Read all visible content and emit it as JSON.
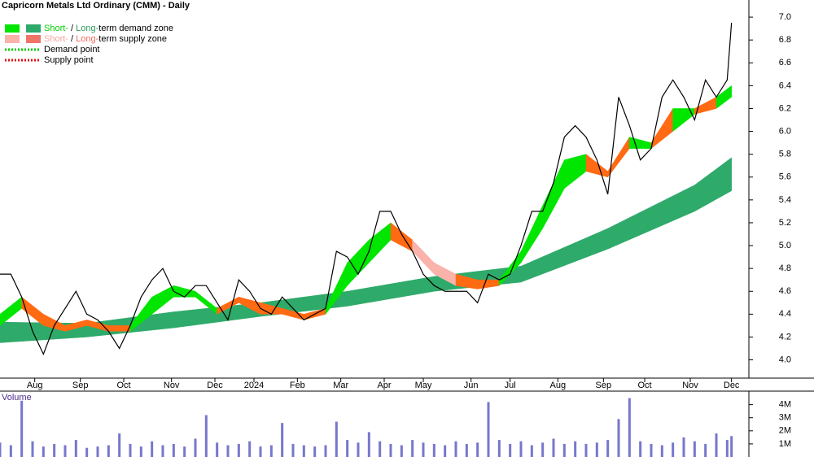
{
  "chart_data": [
    {
      "type": "line",
      "title": "Capricorn Metals Ltd Ordinary (CMM) - Daily",
      "xlim": [
        0,
        345
      ],
      "ylim": [
        3.84,
        7.15
      ],
      "xticks": [
        {
          "value": 16,
          "label": "Aug"
        },
        {
          "value": 37,
          "label": "Sep"
        },
        {
          "value": 57,
          "label": "Oct"
        },
        {
          "value": 79,
          "label": "Nov"
        },
        {
          "value": 99,
          "label": "Dec"
        },
        {
          "value": 117,
          "label": "2024"
        },
        {
          "value": 137,
          "label": "Feb"
        },
        {
          "value": 157,
          "label": "Mar"
        },
        {
          "value": 177,
          "label": "Apr"
        },
        {
          "value": 195,
          "label": "May"
        },
        {
          "value": 217,
          "label": "Jun"
        },
        {
          "value": 235,
          "label": "Jul"
        },
        {
          "value": 257,
          "label": "Aug"
        },
        {
          "value": 278,
          "label": "Sep"
        },
        {
          "value": 297,
          "label": "Oct"
        },
        {
          "value": 318,
          "label": "Nov"
        },
        {
          "value": 337,
          "label": "Dec"
        }
      ],
      "yticks": [
        {
          "value": 4,
          "label": "4.0"
        },
        {
          "value": 4.2,
          "label": "4.2"
        },
        {
          "value": 4.4,
          "label": "4.4"
        },
        {
          "value": 4.6,
          "label": "4.6"
        },
        {
          "value": 4.8,
          "label": "4.8"
        },
        {
          "value": 5,
          "label": "5.0"
        },
        {
          "value": 5.2,
          "label": "5.2"
        },
        {
          "value": 5.4,
          "label": "5.4"
        },
        {
          "value": 5.6,
          "label": "5.6"
        },
        {
          "value": 5.8,
          "label": "5.8"
        },
        {
          "value": 6,
          "label": "6.0"
        },
        {
          "value": 6.2,
          "label": "6.2"
        },
        {
          "value": 6.4,
          "label": "6.4"
        },
        {
          "value": 6.6,
          "label": "6.6"
        },
        {
          "value": 6.8,
          "label": "6.8"
        },
        {
          "value": 7,
          "label": "7.0"
        }
      ],
      "legend": [
        {
          "swatches": [
            "#00e600",
            "#2eaa6a"
          ],
          "parts": [
            "Short-",
            " / ",
            "Long-",
            "term demand zone"
          ],
          "part_colors": [
            "#00d000",
            "#000000",
            "#2e9a5a",
            "#000000"
          ]
        },
        {
          "swatches": [
            "#f9b3ab",
            "#f07468"
          ],
          "parts": [
            "Short-",
            " / ",
            "Long-",
            "term supply zone"
          ],
          "part_colors": [
            "#f5a5a0",
            "#000000",
            "#ee6a5e",
            "#000000"
          ]
        },
        {
          "dots": "#00cc00",
          "parts": [
            "Demand point"
          ],
          "part_colors": [
            "#000000"
          ]
        },
        {
          "dots": "#e01010",
          "parts": [
            "Supply point"
          ],
          "part_colors": [
            "#000000"
          ]
        }
      ],
      "bands": [
        {
          "color": "#2eaa6a",
          "x": [
            0,
            40,
            80,
            120,
            160,
            200,
            240,
            280,
            320,
            337
          ],
          "upper": [
            4.33,
            4.32,
            4.42,
            4.5,
            4.6,
            4.73,
            4.82,
            5.15,
            5.53,
            5.77
          ],
          "lower": [
            4.15,
            4.2,
            4.28,
            4.38,
            4.47,
            4.6,
            4.68,
            4.97,
            5.3,
            5.48
          ]
        },
        {
          "x": [
            0,
            10,
            20,
            30,
            40,
            50,
            60,
            70,
            80,
            90,
            100,
            110,
            120,
            130,
            140,
            150,
            160,
            170,
            180,
            190,
            200,
            210,
            220,
            230,
            240,
            250,
            260,
            270,
            280,
            290,
            300,
            310,
            320,
            330,
            337
          ],
          "upper": [
            4.4,
            4.55,
            4.4,
            4.3,
            4.35,
            4.3,
            4.3,
            4.55,
            4.65,
            4.6,
            4.45,
            4.55,
            4.5,
            4.45,
            4.4,
            4.45,
            4.85,
            5.05,
            5.2,
            5.05,
            4.85,
            4.75,
            4.7,
            4.7,
            4.95,
            5.35,
            5.75,
            5.8,
            5.65,
            5.95,
            5.9,
            6.2,
            6.2,
            6.3,
            6.4
          ],
          "lower": [
            4.3,
            4.45,
            4.3,
            4.25,
            4.3,
            4.25,
            4.25,
            4.4,
            4.55,
            4.55,
            4.4,
            4.5,
            4.4,
            4.4,
            4.35,
            4.4,
            4.65,
            4.85,
            5.05,
            4.95,
            4.75,
            4.65,
            4.62,
            4.65,
            4.85,
            5.15,
            5.5,
            5.65,
            5.6,
            5.85,
            5.85,
            6.0,
            6.15,
            6.2,
            6.3
          ],
          "colors": [
            "#00e600",
            "#ff6a13",
            "#ff6a13",
            "#ff6a13",
            "#ff6a13",
            "#ff6a13",
            "#00e600",
            "#00e600",
            "#00e600",
            "#00e600",
            "#ff6a13",
            "#ff6a13",
            "#ff6a13",
            "#ff6a13",
            "#ff6a13",
            "#00e600",
            "#00e600",
            "#00e600",
            "#ff6a13",
            "#f9b3ab",
            "#f9b3ab",
            "#ff6a13",
            "#ff6a13",
            "#00e600",
            "#00e600",
            "#00e600",
            "#00e600",
            "#ff6a13",
            "#ff6a13",
            "#00e600",
            "#ff6a13",
            "#00e600",
            "#ff6a13",
            "#00e600",
            "#00e600"
          ]
        }
      ],
      "close": {
        "color": "#000000",
        "x": [
          0,
          5,
          10,
          15,
          20,
          25,
          30,
          35,
          40,
          45,
          50,
          55,
          60,
          65,
          70,
          75,
          80,
          85,
          90,
          95,
          100,
          105,
          110,
          115,
          120,
          125,
          130,
          135,
          140,
          145,
          150,
          155,
          160,
          165,
          170,
          175,
          180,
          185,
          190,
          195,
          200,
          205,
          210,
          215,
          220,
          225,
          230,
          235,
          240,
          245,
          250,
          255,
          260,
          265,
          270,
          275,
          280,
          285,
          290,
          295,
          300,
          305,
          310,
          315,
          320,
          325,
          330,
          335,
          337
        ],
        "values": [
          4.75,
          4.75,
          4.55,
          4.25,
          4.05,
          4.3,
          4.45,
          4.6,
          4.4,
          4.35,
          4.25,
          4.1,
          4.3,
          4.55,
          4.7,
          4.8,
          4.6,
          4.55,
          4.65,
          4.65,
          4.5,
          4.35,
          4.7,
          4.6,
          4.45,
          4.4,
          4.55,
          4.45,
          4.35,
          4.4,
          4.45,
          4.95,
          4.9,
          4.75,
          4.95,
          5.3,
          5.3,
          5.1,
          4.95,
          4.75,
          4.65,
          4.6,
          4.6,
          4.6,
          4.5,
          4.75,
          4.7,
          4.75,
          5.0,
          5.3,
          5.3,
          5.55,
          5.95,
          6.05,
          5.95,
          5.75,
          5.45,
          6.3,
          6.05,
          5.75,
          5.85,
          6.3,
          6.45,
          6.3,
          6.1,
          6.45,
          6.3,
          6.45,
          6.95
        ]
      }
    },
    {
      "type": "bar",
      "title": "Volume",
      "xlim": [
        0,
        345
      ],
      "ylim": [
        0,
        4.66
      ],
      "color": "#7777cc",
      "yticks": [
        {
          "value": 1,
          "label": "1M"
        },
        {
          "value": 2,
          "label": "2M"
        },
        {
          "value": 3,
          "label": "3M"
        },
        {
          "value": 4,
          "label": "4M"
        }
      ],
      "x": [
        0,
        5,
        10,
        15,
        20,
        25,
        30,
        35,
        40,
        45,
        50,
        55,
        60,
        65,
        70,
        75,
        80,
        85,
        90,
        95,
        100,
        105,
        110,
        115,
        120,
        125,
        130,
        135,
        140,
        145,
        150,
        155,
        160,
        165,
        170,
        175,
        180,
        185,
        190,
        195,
        200,
        205,
        210,
        215,
        220,
        225,
        230,
        235,
        240,
        245,
        250,
        255,
        260,
        265,
        270,
        275,
        280,
        285,
        290,
        295,
        300,
        305,
        310,
        315,
        320,
        325,
        330,
        335,
        337
      ],
      "values": [
        1.1,
        0.9,
        4.3,
        1.2,
        0.8,
        1.0,
        0.9,
        1.3,
        0.7,
        0.8,
        0.9,
        1.8,
        1.0,
        0.8,
        1.2,
        0.9,
        1.0,
        0.8,
        1.4,
        3.2,
        1.1,
        0.9,
        1.0,
        1.2,
        0.8,
        0.9,
        2.6,
        1.0,
        0.9,
        0.8,
        0.9,
        2.7,
        1.3,
        1.1,
        1.9,
        1.2,
        1.0,
        0.9,
        1.3,
        1.1,
        1.0,
        0.9,
        1.2,
        1.0,
        1.1,
        4.2,
        1.3,
        1.0,
        1.2,
        0.9,
        1.1,
        1.4,
        1.0,
        1.2,
        1.0,
        1.1,
        1.3,
        2.9,
        4.5,
        1.2,
        1.0,
        0.9,
        1.1,
        1.5,
        1.2,
        1.0,
        1.8,
        1.3,
        1.6
      ]
    }
  ]
}
